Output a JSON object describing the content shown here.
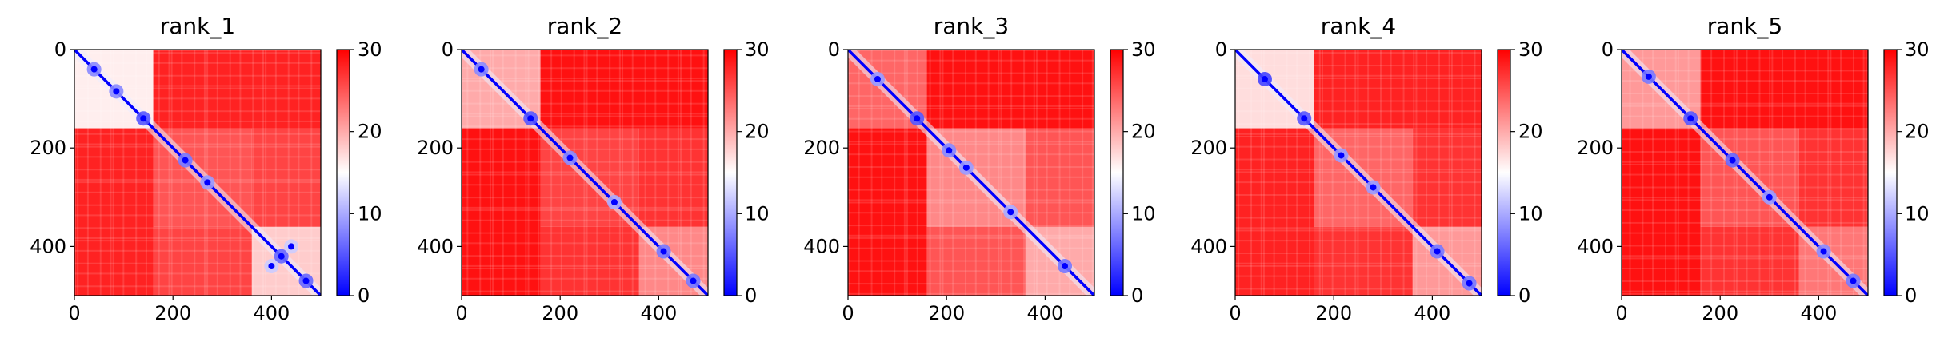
{
  "chart_data": [
    {
      "type": "heatmap",
      "title": "rank_1",
      "xlabel": "",
      "ylabel": "",
      "xlim": [
        0,
        500
      ],
      "ylim": [
        500,
        0
      ],
      "xticks": [
        0,
        200,
        400
      ],
      "yticks": [
        0,
        200,
        400
      ],
      "colorbar": {
        "range": [
          0,
          30
        ],
        "ticks": [
          0,
          10,
          20,
          30
        ],
        "colors": [
          "#0000ff",
          "#ffffff",
          "#ff0000"
        ]
      },
      "blocks": [
        {
          "x": [
            0,
            160
          ],
          "y": [
            0,
            160
          ],
          "value": 16
        },
        {
          "x": [
            160,
            500
          ],
          "y": [
            0,
            160
          ],
          "value": 28
        },
        {
          "x": [
            0,
            160
          ],
          "y": [
            160,
            500
          ],
          "value": 28
        },
        {
          "x": [
            160,
            360
          ],
          "y": [
            160,
            360
          ],
          "value": 25
        },
        {
          "x": [
            360,
            500
          ],
          "y": [
            360,
            500
          ],
          "value": 18
        },
        {
          "x": [
            160,
            360
          ],
          "y": [
            360,
            500
          ],
          "value": 26
        },
        {
          "x": [
            360,
            500
          ],
          "y": [
            160,
            360
          ],
          "value": 26
        }
      ],
      "diagonal_value": 0,
      "contact_spots": [
        {
          "x": 40,
          "y": 40,
          "value": 8
        },
        {
          "x": 85,
          "y": 85,
          "value": 8
        },
        {
          "x": 140,
          "y": 140,
          "value": 5
        },
        {
          "x": 225,
          "y": 225,
          "value": 7
        },
        {
          "x": 270,
          "y": 270,
          "value": 9
        },
        {
          "x": 420,
          "y": 420,
          "value": 6
        },
        {
          "x": 470,
          "y": 470,
          "value": 6
        },
        {
          "x": 440,
          "y": 400,
          "value": 12
        },
        {
          "x": 400,
          "y": 440,
          "value": 12
        }
      ]
    },
    {
      "type": "heatmap",
      "title": "rank_2",
      "xlabel": "",
      "ylabel": "",
      "xlim": [
        0,
        500
      ],
      "ylim": [
        500,
        0
      ],
      "xticks": [
        0,
        200,
        400
      ],
      "yticks": [
        0,
        200,
        400
      ],
      "colorbar": {
        "range": [
          0,
          30
        ],
        "ticks": [
          0,
          10,
          20,
          30
        ],
        "colors": [
          "#0000ff",
          "#ffffff",
          "#ff0000"
        ]
      },
      "blocks": [
        {
          "x": [
            0,
            160
          ],
          "y": [
            0,
            160
          ],
          "value": 20
        },
        {
          "x": [
            160,
            500
          ],
          "y": [
            0,
            160
          ],
          "value": 29
        },
        {
          "x": [
            0,
            160
          ],
          "y": [
            160,
            500
          ],
          "value": 29
        },
        {
          "x": [
            160,
            360
          ],
          "y": [
            160,
            360
          ],
          "value": 26
        },
        {
          "x": [
            360,
            500
          ],
          "y": [
            360,
            500
          ],
          "value": 22
        },
        {
          "x": [
            160,
            360
          ],
          "y": [
            360,
            500
          ],
          "value": 27
        },
        {
          "x": [
            360,
            500
          ],
          "y": [
            160,
            360
          ],
          "value": 27
        }
      ],
      "diagonal_value": 0,
      "contact_spots": [
        {
          "x": 40,
          "y": 40,
          "value": 8
        },
        {
          "x": 140,
          "y": 140,
          "value": 5
        },
        {
          "x": 220,
          "y": 220,
          "value": 8
        },
        {
          "x": 310,
          "y": 310,
          "value": 10
        },
        {
          "x": 410,
          "y": 410,
          "value": 7
        },
        {
          "x": 470,
          "y": 470,
          "value": 7
        }
      ]
    },
    {
      "type": "heatmap",
      "title": "rank_3",
      "xlabel": "",
      "ylabel": "",
      "xlim": [
        0,
        500
      ],
      "ylim": [
        500,
        0
      ],
      "xticks": [
        0,
        200,
        400
      ],
      "yticks": [
        0,
        200,
        400
      ],
      "colorbar": {
        "range": [
          0,
          30
        ],
        "ticks": [
          0,
          10,
          20,
          30
        ],
        "colors": [
          "#0000ff",
          "#ffffff",
          "#ff0000"
        ]
      },
      "blocks": [
        {
          "x": [
            0,
            160
          ],
          "y": [
            0,
            160
          ],
          "value": 24
        },
        {
          "x": [
            160,
            500
          ],
          "y": [
            0,
            160
          ],
          "value": 29
        },
        {
          "x": [
            0,
            160
          ],
          "y": [
            160,
            500
          ],
          "value": 29
        },
        {
          "x": [
            160,
            360
          ],
          "y": [
            160,
            360
          ],
          "value": 22
        },
        {
          "x": [
            360,
            500
          ],
          "y": [
            360,
            500
          ],
          "value": 20
        },
        {
          "x": [
            160,
            360
          ],
          "y": [
            360,
            500
          ],
          "value": 25
        },
        {
          "x": [
            360,
            500
          ],
          "y": [
            160,
            360
          ],
          "value": 25
        }
      ],
      "diagonal_value": 0,
      "contact_spots": [
        {
          "x": 60,
          "y": 60,
          "value": 9
        },
        {
          "x": 140,
          "y": 140,
          "value": 5
        },
        {
          "x": 205,
          "y": 205,
          "value": 8
        },
        {
          "x": 240,
          "y": 240,
          "value": 9
        },
        {
          "x": 330,
          "y": 330,
          "value": 10
        },
        {
          "x": 440,
          "y": 440,
          "value": 7
        }
      ]
    },
    {
      "type": "heatmap",
      "title": "rank_4",
      "xlabel": "",
      "ylabel": "",
      "xlim": [
        0,
        500
      ],
      "ylim": [
        500,
        0
      ],
      "xticks": [
        0,
        200,
        400
      ],
      "yticks": [
        0,
        200,
        400
      ],
      "colorbar": {
        "range": [
          0,
          30
        ],
        "ticks": [
          0,
          10,
          20,
          30
        ],
        "colors": [
          "#0000ff",
          "#ffffff",
          "#ff0000"
        ]
      },
      "blocks": [
        {
          "x": [
            0,
            160
          ],
          "y": [
            0,
            160
          ],
          "value": 17
        },
        {
          "x": [
            160,
            500
          ],
          "y": [
            0,
            160
          ],
          "value": 28
        },
        {
          "x": [
            0,
            160
          ],
          "y": [
            160,
            500
          ],
          "value": 28
        },
        {
          "x": [
            160,
            360
          ],
          "y": [
            160,
            360
          ],
          "value": 24
        },
        {
          "x": [
            360,
            500
          ],
          "y": [
            360,
            500
          ],
          "value": 21
        },
        {
          "x": [
            160,
            360
          ],
          "y": [
            360,
            500
          ],
          "value": 27
        },
        {
          "x": [
            360,
            500
          ],
          "y": [
            160,
            360
          ],
          "value": 27
        }
      ],
      "diagonal_value": 0,
      "contact_spots": [
        {
          "x": 60,
          "y": 60,
          "value": 4
        },
        {
          "x": 140,
          "y": 140,
          "value": 5
        },
        {
          "x": 215,
          "y": 215,
          "value": 9
        },
        {
          "x": 280,
          "y": 280,
          "value": 9
        },
        {
          "x": 410,
          "y": 410,
          "value": 7
        },
        {
          "x": 475,
          "y": 475,
          "value": 7
        }
      ]
    },
    {
      "type": "heatmap",
      "title": "rank_5",
      "xlabel": "",
      "ylabel": "",
      "xlim": [
        0,
        500
      ],
      "ylim": [
        500,
        0
      ],
      "xticks": [
        0,
        200,
        400
      ],
      "yticks": [
        0,
        200,
        400
      ],
      "colorbar": {
        "range": [
          0,
          30
        ],
        "ticks": [
          0,
          10,
          20,
          30
        ],
        "colors": [
          "#0000ff",
          "#ffffff",
          "#ff0000"
        ]
      },
      "blocks": [
        {
          "x": [
            0,
            160
          ],
          "y": [
            0,
            160
          ],
          "value": 21
        },
        {
          "x": [
            160,
            500
          ],
          "y": [
            0,
            160
          ],
          "value": 29
        },
        {
          "x": [
            0,
            160
          ],
          "y": [
            160,
            500
          ],
          "value": 29
        },
        {
          "x": [
            160,
            360
          ],
          "y": [
            160,
            360
          ],
          "value": 25
        },
        {
          "x": [
            360,
            500
          ],
          "y": [
            360,
            500
          ],
          "value": 23
        },
        {
          "x": [
            160,
            360
          ],
          "y": [
            360,
            500
          ],
          "value": 27
        },
        {
          "x": [
            360,
            500
          ],
          "y": [
            160,
            360
          ],
          "value": 27
        }
      ],
      "diagonal_value": 0,
      "contact_spots": [
        {
          "x": 55,
          "y": 55,
          "value": 7
        },
        {
          "x": 140,
          "y": 140,
          "value": 5
        },
        {
          "x": 225,
          "y": 225,
          "value": 6
        },
        {
          "x": 300,
          "y": 300,
          "value": 9
        },
        {
          "x": 410,
          "y": 410,
          "value": 8
        },
        {
          "x": 470,
          "y": 470,
          "value": 7
        }
      ]
    }
  ]
}
